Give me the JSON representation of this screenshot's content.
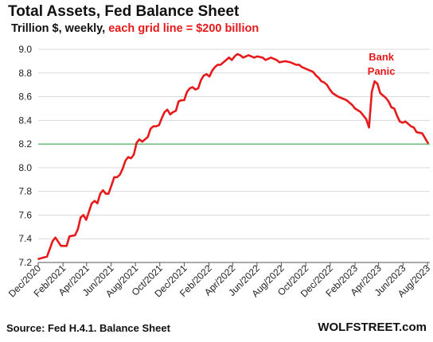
{
  "header": {
    "title": "Total Assets, Fed Balance Sheet",
    "subtitle_plain": "Trillion $, weekly, ",
    "subtitle_highlight": "each grid line = $200 billion"
  },
  "footer": {
    "source": "Source: Fed H.4.1. Balance Sheet",
    "brand": "WOLFSTREET.com"
  },
  "colors": {
    "line": "#e8191a",
    "reference_line": "#2e9e3e",
    "grid": "#d9d9d9",
    "annotation": "#e8191a"
  },
  "chart_data": {
    "type": "line",
    "title": "Total Assets, Fed Balance Sheet",
    "ylabel": "Trillion $",
    "ylim": [
      7.2,
      9.0
    ],
    "yticks": [
      "7.2",
      "7.4",
      "7.6",
      "7.8",
      "8.0",
      "8.2",
      "8.4",
      "8.6",
      "8.8",
      "9.0"
    ],
    "xticks": [
      "Dec/2020",
      "Feb/2021",
      "Apr/2021",
      "Jun/2021",
      "Aug/2021",
      "Oct/2021",
      "Dec/2021",
      "Feb/2022",
      "Apr/2022",
      "Jun/2022",
      "Aug/2022",
      "Oct/2022",
      "Dec/2022",
      "Feb/2023",
      "Apr/2023",
      "Jun/2023",
      "Aug/2023"
    ],
    "grid": true,
    "reference_line": {
      "y": 8.2
    },
    "annotations": [
      {
        "text": [
          "Bank",
          "Panic"
        ],
        "x": "2023-03-15"
      }
    ],
    "series": [
      {
        "values": [
          [
            "2020-12-02",
            7.23
          ],
          [
            "2020-12-23",
            7.25
          ],
          [
            "2021-01-06",
            7.38
          ],
          [
            "2021-01-13",
            7.41
          ],
          [
            "2021-01-27",
            7.34
          ],
          [
            "2021-02-10",
            7.34
          ],
          [
            "2021-02-17",
            7.42
          ],
          [
            "2021-03-03",
            7.43
          ],
          [
            "2021-03-10",
            7.48
          ],
          [
            "2021-03-17",
            7.58
          ],
          [
            "2021-03-24",
            7.6
          ],
          [
            "2021-03-31",
            7.56
          ],
          [
            "2021-04-14",
            7.7
          ],
          [
            "2021-04-21",
            7.72
          ],
          [
            "2021-04-28",
            7.7
          ],
          [
            "2021-05-05",
            7.78
          ],
          [
            "2021-05-12",
            7.81
          ],
          [
            "2021-05-19",
            7.78
          ],
          [
            "2021-05-26",
            7.78
          ],
          [
            "2021-06-02",
            7.85
          ],
          [
            "2021-06-09",
            7.92
          ],
          [
            "2021-06-16",
            7.92
          ],
          [
            "2021-06-23",
            7.94
          ],
          [
            "2021-06-30",
            7.99
          ],
          [
            "2021-07-07",
            8.06
          ],
          [
            "2021-07-14",
            8.09
          ],
          [
            "2021-07-21",
            8.08
          ],
          [
            "2021-07-28",
            8.11
          ],
          [
            "2021-08-04",
            8.21
          ],
          [
            "2021-08-11",
            8.24
          ],
          [
            "2021-08-18",
            8.22
          ],
          [
            "2021-08-25",
            8.24
          ],
          [
            "2021-09-01",
            8.26
          ],
          [
            "2021-09-08",
            8.33
          ],
          [
            "2021-09-15",
            8.35
          ],
          [
            "2021-09-22",
            8.35
          ],
          [
            "2021-09-29",
            8.36
          ],
          [
            "2021-10-06",
            8.42
          ],
          [
            "2021-10-13",
            8.47
          ],
          [
            "2021-10-20",
            8.49
          ],
          [
            "2021-10-27",
            8.45
          ],
          [
            "2021-11-03",
            8.47
          ],
          [
            "2021-11-10",
            8.48
          ],
          [
            "2021-11-17",
            8.56
          ],
          [
            "2021-11-24",
            8.57
          ],
          [
            "2021-12-01",
            8.57
          ],
          [
            "2021-12-08",
            8.64
          ],
          [
            "2021-12-15",
            8.67
          ],
          [
            "2021-12-22",
            8.68
          ],
          [
            "2021-12-29",
            8.66
          ],
          [
            "2022-01-05",
            8.67
          ],
          [
            "2022-01-12",
            8.74
          ],
          [
            "2022-01-19",
            8.78
          ],
          [
            "2022-01-26",
            8.79
          ],
          [
            "2022-02-02",
            8.77
          ],
          [
            "2022-02-09",
            8.82
          ],
          [
            "2022-02-16",
            8.85
          ],
          [
            "2022-02-23",
            8.87
          ],
          [
            "2022-03-02",
            8.87
          ],
          [
            "2022-03-09",
            8.89
          ],
          [
            "2022-03-16",
            8.91
          ],
          [
            "2022-03-23",
            8.93
          ],
          [
            "2022-03-30",
            8.91
          ],
          [
            "2022-04-06",
            8.94
          ],
          [
            "2022-04-13",
            8.96
          ],
          [
            "2022-04-20",
            8.95
          ],
          [
            "2022-04-27",
            8.93
          ],
          [
            "2022-05-04",
            8.94
          ],
          [
            "2022-05-11",
            8.95
          ],
          [
            "2022-05-18",
            8.94
          ],
          [
            "2022-05-25",
            8.93
          ],
          [
            "2022-06-01",
            8.94
          ],
          [
            "2022-06-15",
            8.93
          ],
          [
            "2022-06-22",
            8.91
          ],
          [
            "2022-06-29",
            8.92
          ],
          [
            "2022-07-06",
            8.93
          ],
          [
            "2022-07-20",
            8.91
          ],
          [
            "2022-07-27",
            8.89
          ],
          [
            "2022-08-10",
            8.9
          ],
          [
            "2022-08-24",
            8.89
          ],
          [
            "2022-09-07",
            8.87
          ],
          [
            "2022-09-14",
            8.87
          ],
          [
            "2022-09-21",
            8.85
          ],
          [
            "2022-10-05",
            8.83
          ],
          [
            "2022-10-19",
            8.81
          ],
          [
            "2022-10-26",
            8.78
          ],
          [
            "2022-11-02",
            8.76
          ],
          [
            "2022-11-09",
            8.73
          ],
          [
            "2022-11-16",
            8.72
          ],
          [
            "2022-11-23",
            8.7
          ],
          [
            "2022-11-30",
            8.66
          ],
          [
            "2022-12-07",
            8.63
          ],
          [
            "2022-12-21",
            8.6
          ],
          [
            "2022-12-28",
            8.59
          ],
          [
            "2023-01-11",
            8.57
          ],
          [
            "2023-01-25",
            8.53
          ],
          [
            "2023-02-01",
            8.5
          ],
          [
            "2023-02-15",
            8.47
          ],
          [
            "2023-02-22",
            8.44
          ],
          [
            "2023-03-01",
            8.41
          ],
          [
            "2023-03-08",
            8.34
          ],
          [
            "2023-03-15",
            8.64
          ],
          [
            "2023-03-22",
            8.73
          ],
          [
            "2023-03-29",
            8.71
          ],
          [
            "2023-04-05",
            8.63
          ],
          [
            "2023-04-12",
            8.61
          ],
          [
            "2023-04-19",
            8.59
          ],
          [
            "2023-04-26",
            8.56
          ],
          [
            "2023-05-03",
            8.51
          ],
          [
            "2023-05-10",
            8.5
          ],
          [
            "2023-05-17",
            8.44
          ],
          [
            "2023-05-24",
            8.39
          ],
          [
            "2023-05-31",
            8.38
          ],
          [
            "2023-06-07",
            8.39
          ],
          [
            "2023-06-14",
            8.37
          ],
          [
            "2023-06-21",
            8.35
          ],
          [
            "2023-06-28",
            8.34
          ],
          [
            "2023-07-05",
            8.3
          ],
          [
            "2023-07-19",
            8.29
          ],
          [
            "2023-07-26",
            8.25
          ],
          [
            "2023-08-02",
            8.21
          ]
        ]
      }
    ]
  }
}
